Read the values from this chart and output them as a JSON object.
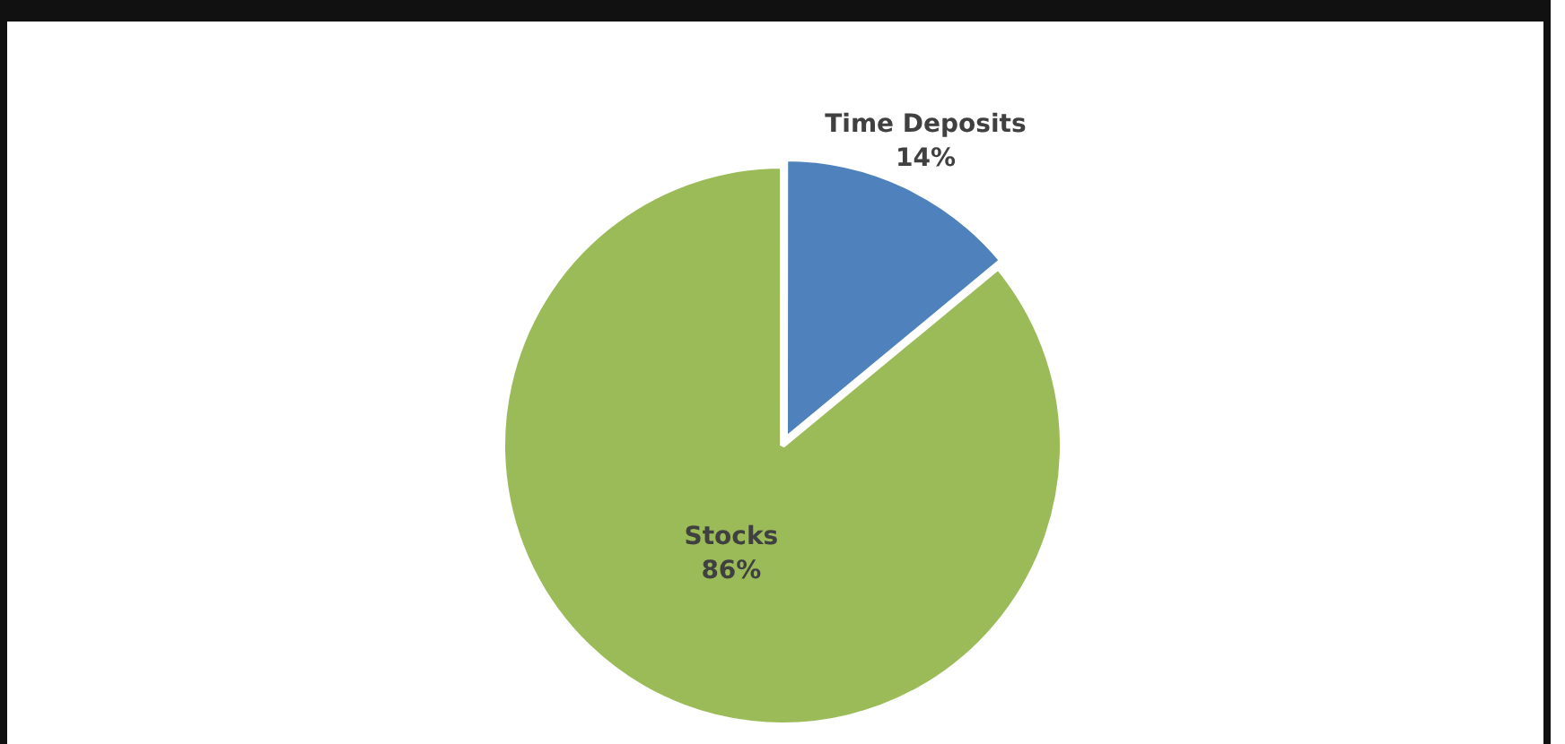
{
  "chart_data": {
    "type": "pie",
    "categories": [
      "Time Deposits",
      "Stocks"
    ],
    "values": [
      14,
      86
    ],
    "colors": [
      "#4f81bd",
      "#9bbb59"
    ],
    "value_labels": [
      "14%",
      "86%"
    ],
    "legend": false
  }
}
